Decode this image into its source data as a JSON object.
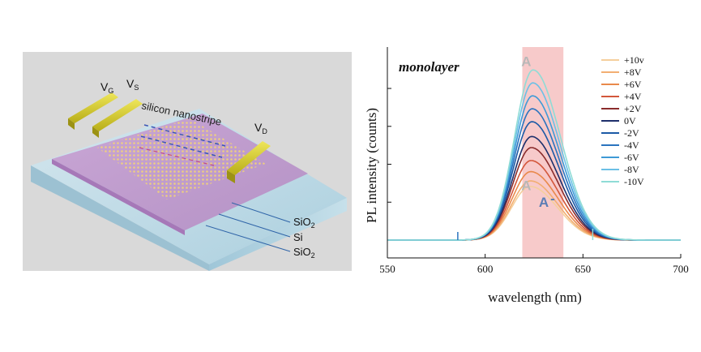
{
  "device": {
    "gate_label": "V",
    "gate_sub": "G",
    "source_label": "V",
    "source_sub": "S",
    "drain_label": "V",
    "drain_sub": "D",
    "stripe_label": "silicon  nanostripe",
    "layers": [
      {
        "name": "SiO",
        "sub": "2"
      },
      {
        "name": "Si",
        "sub": ""
      },
      {
        "name": "SiO",
        "sub": "2"
      }
    ],
    "colors": {
      "background": "#d9d9d9",
      "glass": "#bcd8e4",
      "silicon_layer": "#c79bd0",
      "electrode": "#d6cf2a",
      "leader_line": "#2f64a8"
    }
  },
  "chart_data": {
    "type": "line",
    "annotation": "monolayer",
    "xlabel": "wavelength (nm)",
    "ylabel": "PL intensity (counts)",
    "xlim": [
      550,
      700
    ],
    "ylim": [
      0,
      1
    ],
    "x_ticks": [
      "550",
      "600",
      "650",
      "700"
    ],
    "highlight_band": {
      "x_from": 619,
      "x_to": 640,
      "color": "#f7caca"
    },
    "peak_labels": [
      {
        "text": "A",
        "x": 621,
        "y": 0.94,
        "color": "#b8b8b8"
      },
      {
        "text": "A",
        "x": 621,
        "y": 0.27,
        "color": "#b8b8b8"
      },
      {
        "text": "A",
        "x": 630,
        "y": 0.18,
        "color": "#5b7db5"
      },
      {
        "text": "-",
        "x": 634.5,
        "y": 0.2,
        "color": "#5b7db5"
      }
    ],
    "series": [
      {
        "name": "+10v",
        "color": "#f5cf9c",
        "peak_x": 623,
        "peak": 0.29
      },
      {
        "name": "+8V",
        "color": "#f2ae72",
        "peak_x": 623,
        "peak": 0.32
      },
      {
        "name": "+6V",
        "color": "#e9894b",
        "peak_x": 623,
        "peak": 0.37
      },
      {
        "name": "+4V",
        "color": "#d3573b",
        "peak_x": 623,
        "peak": 0.43
      },
      {
        "name": "+2V",
        "color": "#8a2c2c",
        "peak_x": 623,
        "peak": 0.5
      },
      {
        "name": "0V",
        "color": "#1d2f6b",
        "peak_x": 623,
        "peak": 0.56
      },
      {
        "name": "-2V",
        "color": "#1c5aa6",
        "peak_x": 623,
        "peak": 0.64
      },
      {
        "name": "-4V",
        "color": "#2b74bf",
        "peak_x": 623,
        "peak": 0.71
      },
      {
        "name": "-6V",
        "color": "#3e9ad6",
        "peak_x": 623,
        "peak": 0.78
      },
      {
        "name": "-8V",
        "color": "#6cc0e6",
        "peak_x": 623,
        "peak": 0.85
      },
      {
        "name": "-10V",
        "color": "#8fdcd6",
        "peak_x": 623,
        "peak": 0.92
      }
    ]
  }
}
